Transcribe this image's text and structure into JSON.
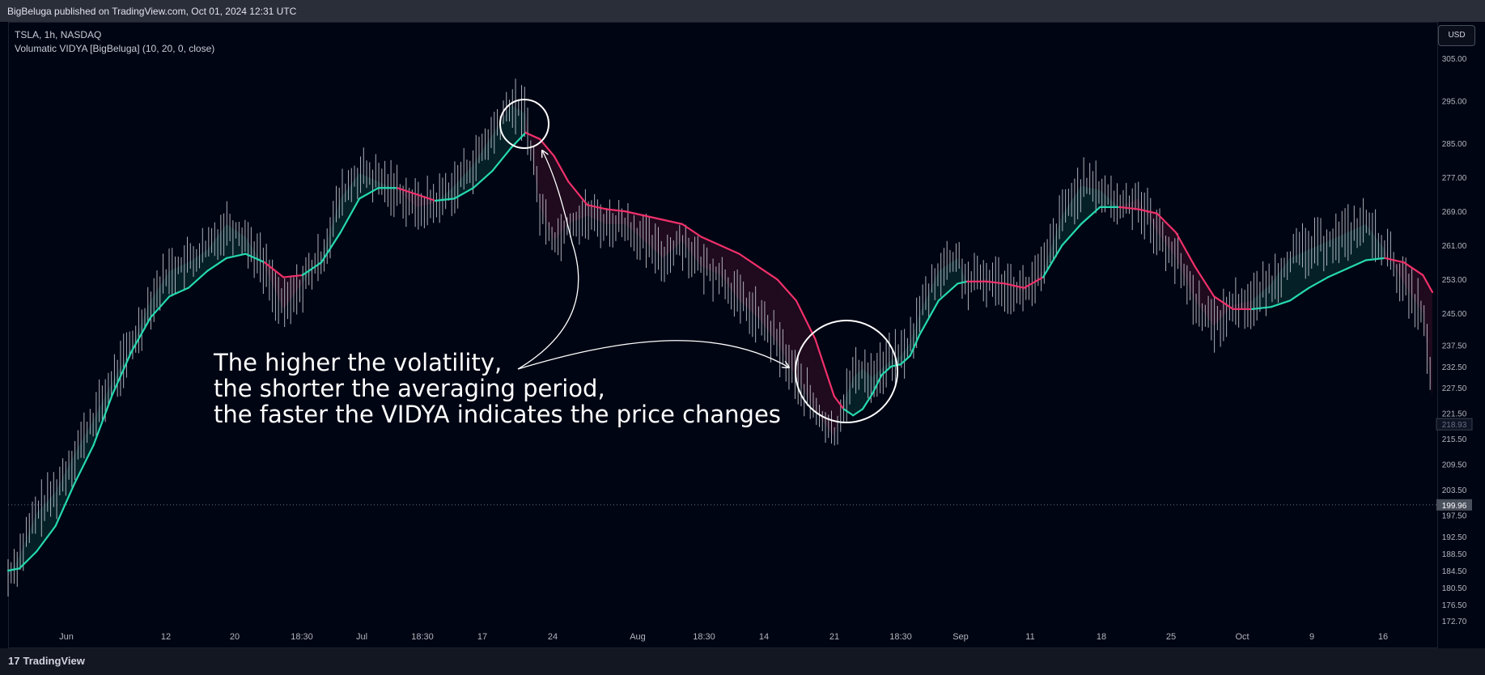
{
  "header": {
    "published": "BigBeluga published on TradingView.com, Oct 01, 2024 12:31 UTC"
  },
  "legend": {
    "symbol": "TSLA, 1h, NASDAQ",
    "indicator": "Volumatic VIDYA [BigBeluga] (10, 20, 0, close)"
  },
  "currency_button": "USD",
  "annotation": {
    "lines": [
      "The higher the volatility,",
      "the shorter the averaging period,",
      "the faster the VIDYA indicates the price changes"
    ]
  },
  "footer": {
    "brand": "TradingView",
    "logo_mark": "17"
  },
  "colors": {
    "bull": "#26d9b0",
    "bear": "#f0306a",
    "candle": "#c8ccd6",
    "background": "#000513"
  },
  "chart_data": {
    "type": "line",
    "title": "TSLA, 1h, NASDAQ",
    "ylim": [
      170,
      308
    ],
    "y_ticks": [
      "305.00",
      "295.00",
      "285.00",
      "277.00",
      "269.00",
      "261.00",
      "253.00",
      "245.00",
      "237.50",
      "232.50",
      "227.50",
      "221.50",
      "215.50",
      "209.50",
      "203.50",
      "197.50",
      "192.50",
      "188.50",
      "184.50",
      "180.50",
      "176.50",
      "172.70"
    ],
    "x_ticks": [
      "Jun",
      "12",
      "20",
      "18:30",
      "Jul",
      "18:30",
      "17",
      "24",
      "Aug",
      "18:30",
      "14",
      "21",
      "18:30",
      "Sep",
      "11",
      "18",
      "25",
      "Oct",
      "9",
      "16"
    ],
    "price_labels": {
      "last": "218.93",
      "crosshair": "199.96"
    },
    "crosshair_y": 199.96,
    "series": [
      {
        "name": "Volumatic VIDYA [BigBeluga]",
        "x": [
          0,
          12,
          30,
          50,
          70,
          90,
          110,
          130,
          150,
          170,
          190,
          210,
          230,
          250,
          270,
          290,
          310,
          330,
          350,
          370,
          390,
          410,
          430,
          450,
          470,
          490,
          510,
          530,
          545,
          560,
          575,
          590,
          610,
          630,
          650,
          670,
          690,
          710,
          730,
          750,
          770,
          790,
          810,
          830,
          850,
          870,
          880,
          890,
          900,
          910,
          920,
          930,
          940,
          950,
          960,
          980,
          1000,
          1010,
          1030,
          1050,
          1070,
          1090,
          1110,
          1130,
          1150,
          1170,
          1190,
          1210,
          1230,
          1250,
          1270,
          1290,
          1310,
          1330,
          1350,
          1370,
          1390,
          1410,
          1430,
          1450,
          1470,
          1490,
          1500
        ],
        "y": [
          184.5,
          185,
          189,
          195,
          205,
          214,
          226,
          236,
          244,
          249,
          251,
          255,
          258,
          259,
          257,
          253.5,
          254,
          257,
          264,
          272,
          274.5,
          274.5,
          273,
          271.5,
          272,
          274.5,
          278.5,
          284,
          287.5,
          286,
          282,
          276,
          270.5,
          269.5,
          269,
          268,
          267,
          266,
          263,
          261,
          259,
          256,
          253,
          248,
          239,
          225.5,
          222.5,
          221,
          222.5,
          226,
          230.5,
          232.5,
          233,
          235,
          240,
          248,
          252,
          252.5,
          252.5,
          252,
          251,
          253.5,
          261,
          266,
          270,
          270,
          269.5,
          268.5,
          264,
          256,
          249,
          246,
          246,
          246.5,
          248,
          251,
          253.5,
          255.5,
          257.5,
          258,
          257,
          254,
          250
        ],
        "trend": [
          "bull",
          "bull",
          "bull",
          "bull",
          "bull",
          "bull",
          "bull",
          "bull",
          "bull",
          "bull",
          "bull",
          "bull",
          "bull",
          "bull",
          "bear",
          "bear",
          "bull",
          "bull",
          "bull",
          "bull",
          "bull",
          "bear",
          "bear",
          "bull",
          "bull",
          "bull",
          "bull",
          "bull",
          "bear",
          "bear",
          "bear",
          "bear",
          "bear",
          "bear",
          "bear",
          "bear",
          "bear",
          "bear",
          "bear",
          "bear",
          "bear",
          "bear",
          "bear",
          "bear",
          "bear",
          "bear",
          "bull",
          "bull",
          "bull",
          "bull",
          "bull",
          "bull",
          "bull",
          "bull",
          "bull",
          "bull",
          "bull",
          "bear",
          "bear",
          "bear",
          "bear",
          "bull",
          "bull",
          "bull",
          "bull",
          "bear",
          "bear",
          "bear",
          "bear",
          "bear",
          "bear",
          "bear",
          "bull",
          "bull",
          "bull",
          "bull",
          "bull",
          "bull",
          "bull",
          "bear",
          "bear",
          "bear",
          "bear"
        ]
      },
      {
        "name": "TSLA",
        "x": [
          0,
          12,
          30,
          50,
          70,
          90,
          110,
          130,
          150,
          170,
          190,
          210,
          230,
          250,
          270,
          290,
          310,
          330,
          350,
          370,
          390,
          410,
          430,
          450,
          470,
          490,
          510,
          530,
          545,
          560,
          575,
          590,
          610,
          630,
          650,
          670,
          690,
          710,
          730,
          750,
          770,
          790,
          810,
          830,
          850,
          870,
          880,
          890,
          900,
          910,
          920,
          930,
          940,
          950,
          960,
          980,
          1000,
          1010,
          1030,
          1050,
          1070,
          1090,
          1110,
          1130,
          1150,
          1170,
          1190,
          1210,
          1230,
          1250,
          1270,
          1290,
          1310,
          1330,
          1350,
          1370,
          1390,
          1410,
          1430,
          1450,
          1470,
          1490,
          1500
        ],
        "y": [
          183,
          188,
          198,
          203,
          212,
          220,
          229,
          237,
          248,
          255,
          257,
          260,
          266,
          263,
          256,
          246,
          252,
          258,
          272,
          278,
          276,
          274,
          270,
          271,
          275,
          280,
          287,
          294,
          292,
          270,
          262,
          266,
          268,
          266,
          266,
          262,
          258,
          262,
          256,
          254,
          248,
          244,
          238,
          230,
          222,
          216,
          224,
          230,
          232,
          230,
          232,
          234,
          235,
          238,
          245,
          255,
          258,
          252,
          253,
          252,
          250,
          255,
          268,
          275,
          274,
          270,
          272,
          264,
          258,
          248,
          242,
          247,
          248,
          252,
          258,
          260,
          262,
          264,
          266,
          260,
          252,
          245,
          225
        ]
      }
    ]
  }
}
